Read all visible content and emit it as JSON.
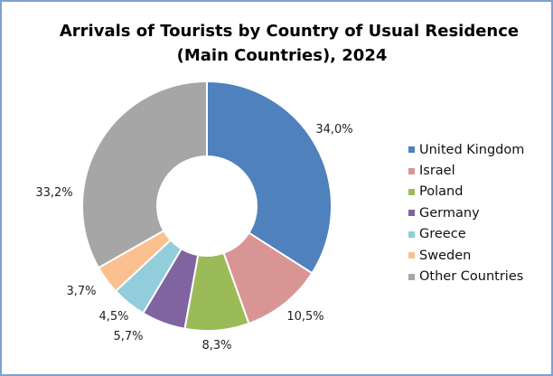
{
  "chart_data": {
    "type": "pie",
    "variant": "donut",
    "title_line1": "Arrivals of Tourists by Country of Usual Residence",
    "title_line2": "(Main Countries), 2024",
    "categories": [
      "United Kingdom",
      "Israel",
      "Poland",
      "Germany",
      "Greece",
      "Sweden",
      "Other Countries"
    ],
    "values": [
      34.0,
      10.5,
      8.3,
      5.7,
      4.5,
      3.7,
      33.2
    ],
    "data_labels": [
      "34,0%",
      "10,5%",
      "8,3%",
      "5,7%",
      "4,5%",
      "3,7%",
      "33,2%"
    ],
    "colors": [
      "#4f81bd",
      "#d99594",
      "#9bbb59",
      "#8064a2",
      "#92cddc",
      "#fac08f",
      "#a6a6a6"
    ],
    "legend_position": "right"
  }
}
